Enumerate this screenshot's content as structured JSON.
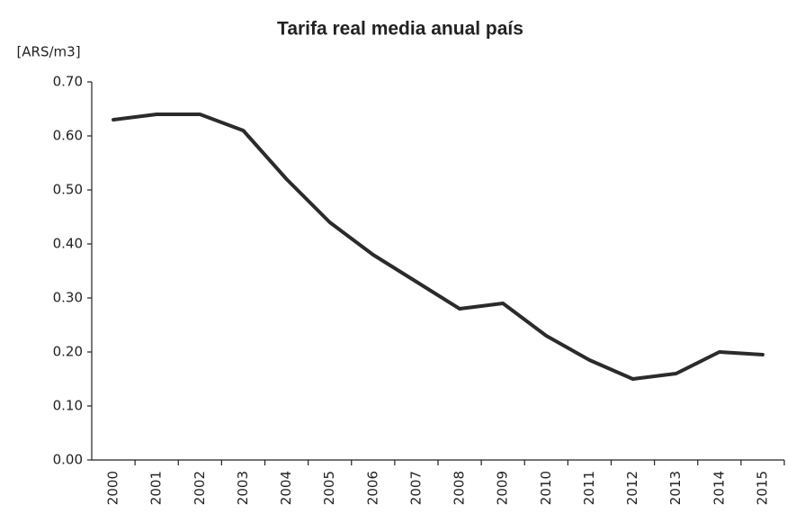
{
  "chart_data": {
    "type": "line",
    "title": "Tarifa real media anual país",
    "y_label": "[ARS/m3]",
    "categories": [
      "2000",
      "2001",
      "2002",
      "2003",
      "2004",
      "2005",
      "2006",
      "2007",
      "2008",
      "2009",
      "2010",
      "2011",
      "2012",
      "2013",
      "2014",
      "2015"
    ],
    "values": [
      0.63,
      0.64,
      0.64,
      0.61,
      0.52,
      0.44,
      0.38,
      0.33,
      0.28,
      0.29,
      0.23,
      0.185,
      0.15,
      0.16,
      0.2,
      0.195
    ],
    "color": "#2b2b2b",
    "ylim": [
      0,
      0.7
    ],
    "yticks": [
      {
        "value": 0,
        "label": "0.00"
      },
      {
        "value": 0.1,
        "label": "0.10"
      },
      {
        "value": 0.2,
        "label": "0.20"
      },
      {
        "value": 0.3,
        "label": "0.30"
      },
      {
        "value": 0.4,
        "label": "0.40"
      },
      {
        "value": 0.5,
        "label": "0.50"
      },
      {
        "value": 0.6,
        "label": "0.60"
      },
      {
        "value": 0.7,
        "label": "0.70"
      }
    ],
    "grid": false
  }
}
